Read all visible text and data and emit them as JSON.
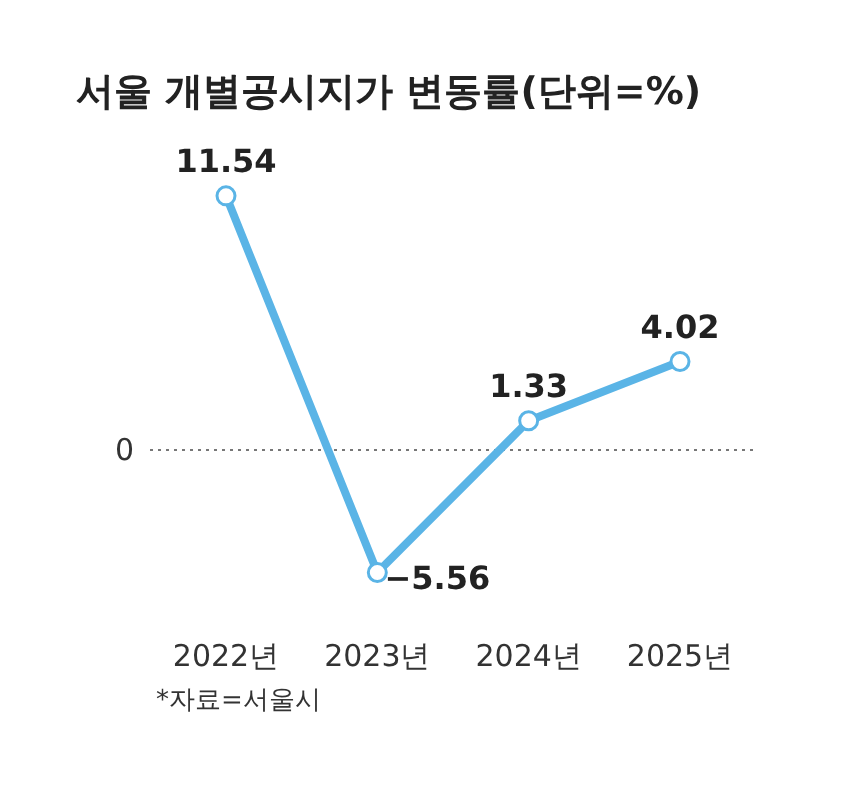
{
  "chart_data": {
    "type": "line",
    "title": "서울 개별공시지가 변동률(단위=%)",
    "categories": [
      "2022년",
      "2023년",
      "2024년",
      "2025년"
    ],
    "series": [
      {
        "color": "#5ab4e6",
        "values": [
          11.54,
          -5.56,
          1.33,
          4.02
        ]
      }
    ],
    "ref_lines": [
      {
        "axis": "y",
        "value": 0,
        "label": "0",
        "color": "#777777",
        "line_style": "dotted"
      }
    ],
    "data_labels": true,
    "marker": "circle",
    "line_style": "solid",
    "annotations": [
      "*자료=서울시"
    ]
  }
}
